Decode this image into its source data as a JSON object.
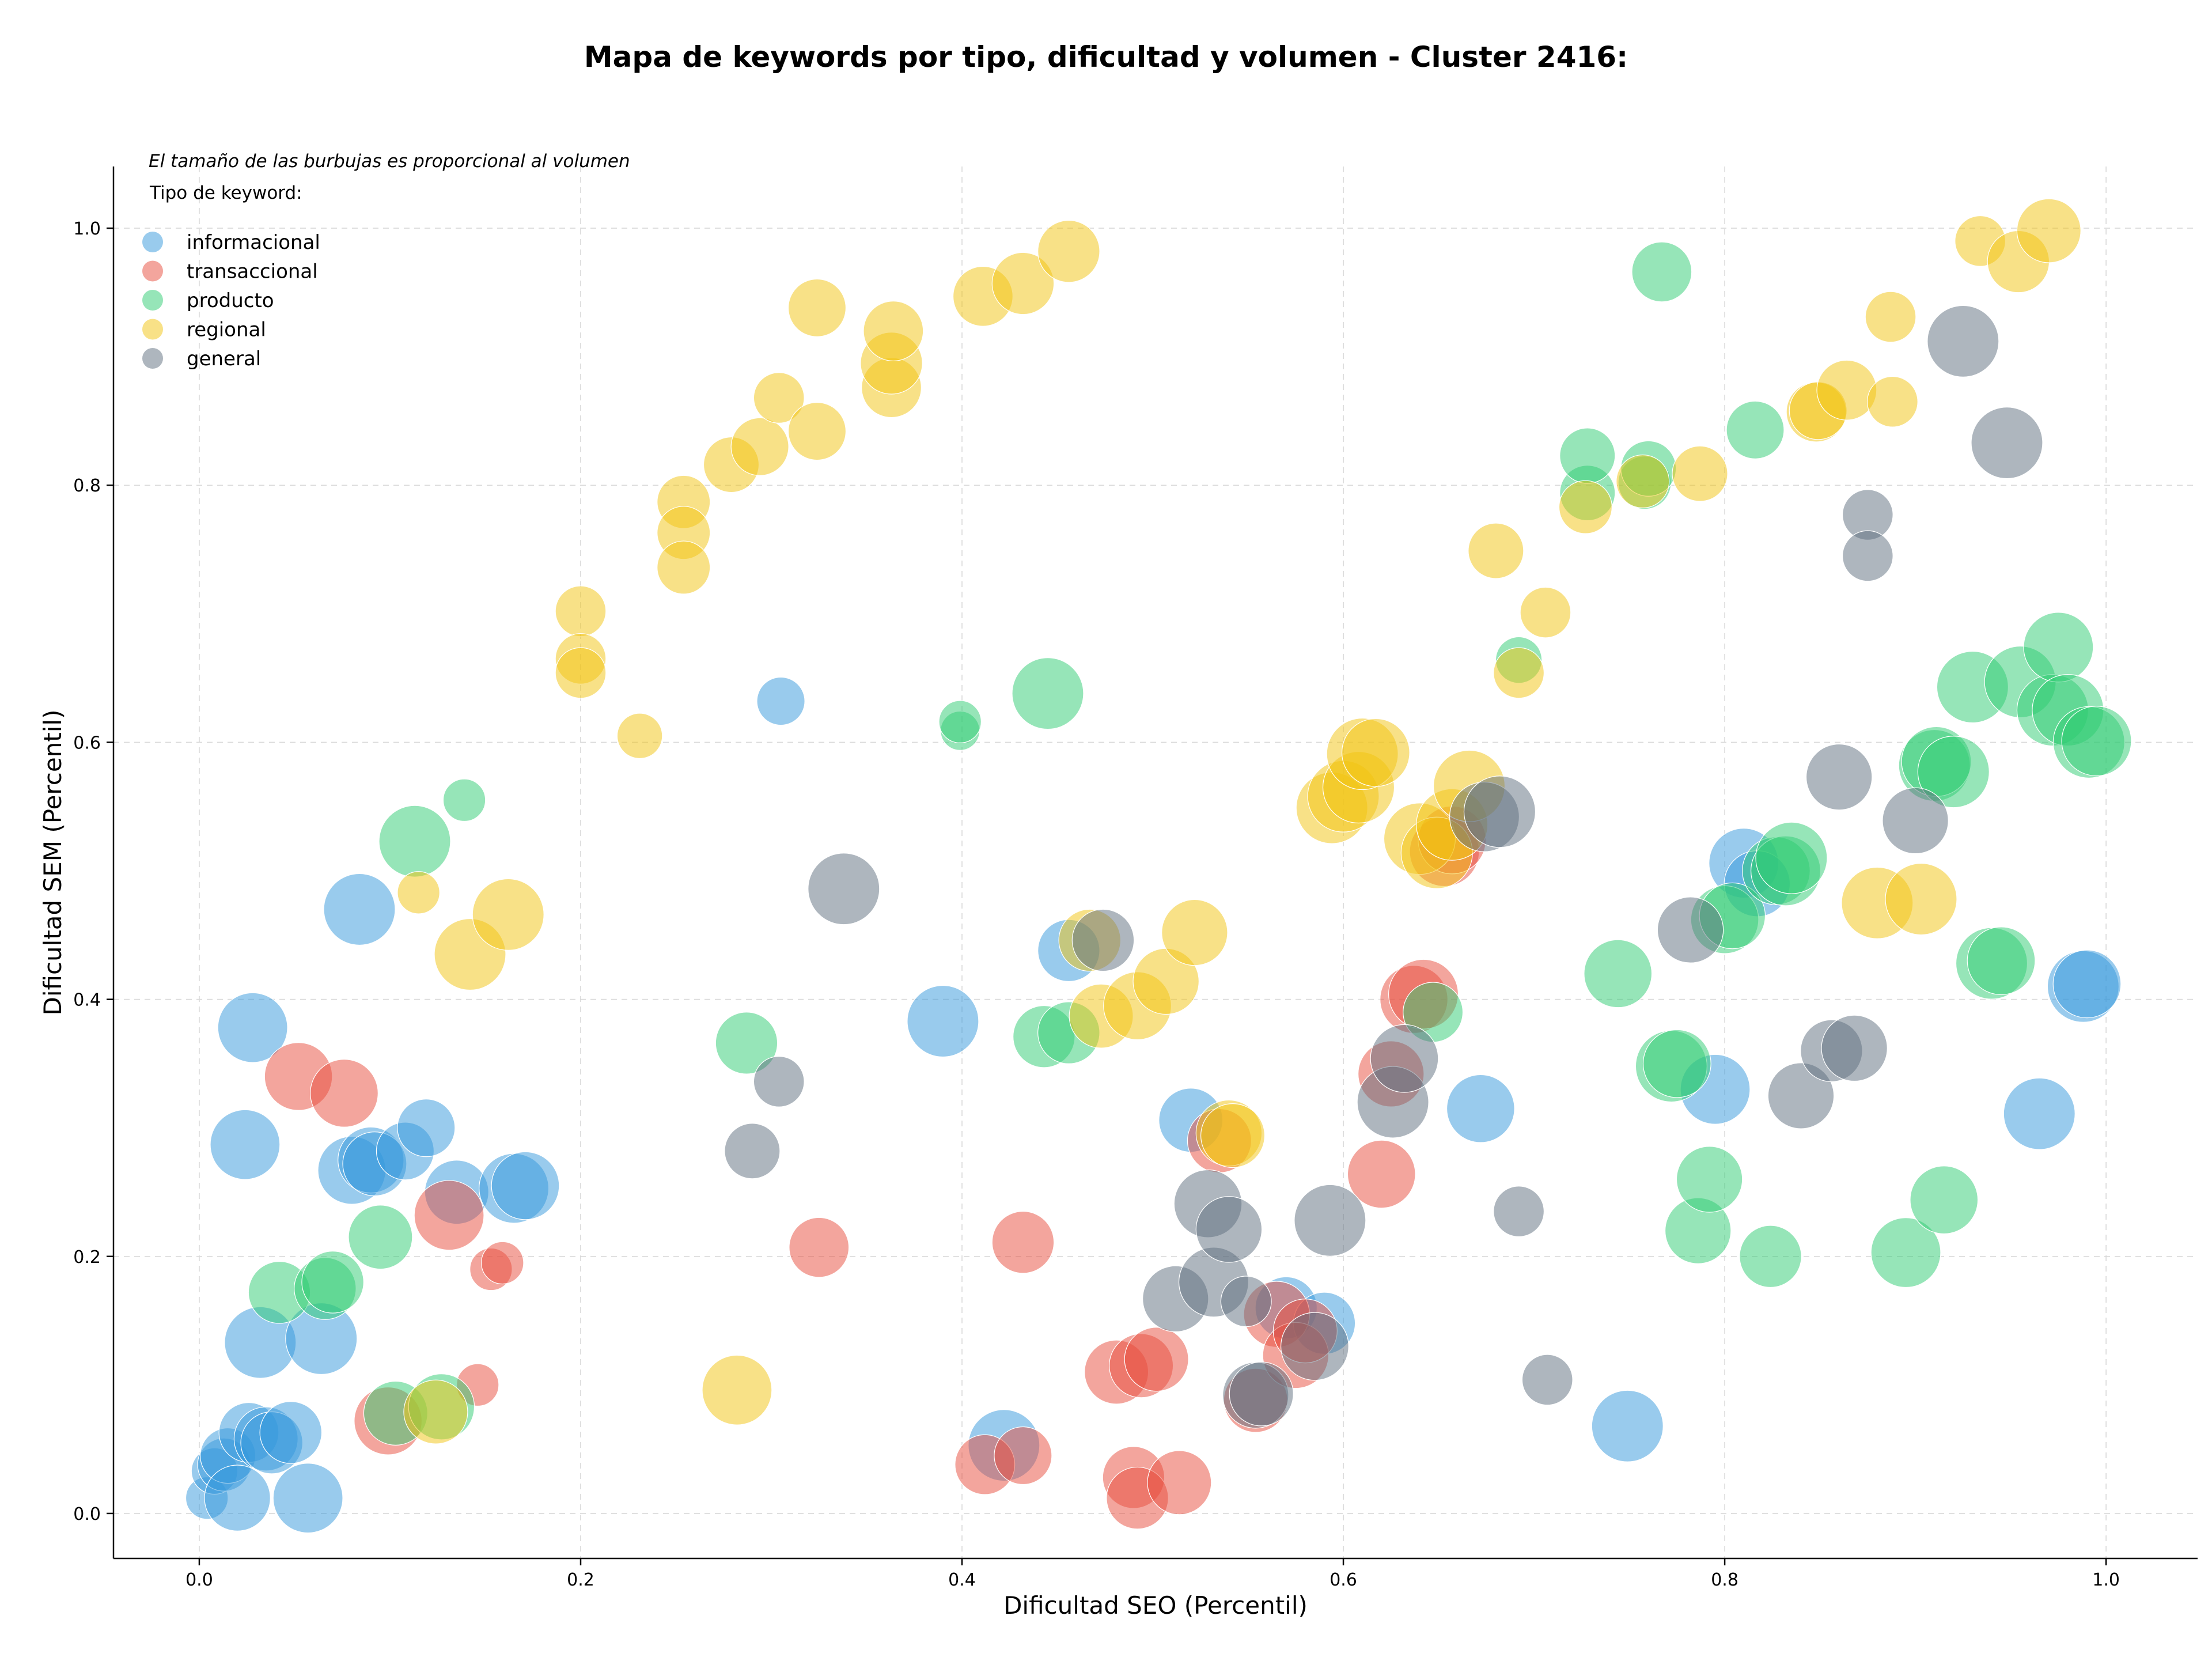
{
  "chart_data": {
    "type": "scatter",
    "title": "Mapa de keywords por tipo, dificultad y volumen - Cluster 2416:",
    "xlabel": "Dificultad SEO (Percentil)",
    "ylabel": "Dificultad SEM (Percentil)",
    "xlim": [
      -0.045,
      1.048
    ],
    "ylim": [
      -0.035,
      1.048
    ],
    "xticks": [
      "0.0",
      "0.2",
      "0.4",
      "0.6",
      "0.8",
      "1.0"
    ],
    "yticks": [
      "0.0",
      "0.2",
      "0.4",
      "0.6",
      "0.8",
      "1.0"
    ],
    "grid": true,
    "size_note": "El tamaño de las burbujas es proporcional al volumen",
    "legend_title": "Tipo de keyword:",
    "legend_position": "top-left",
    "series": [
      {
        "name": "informacional",
        "color": "#3498db",
        "points": [
          [
            0.004,
            0.012,
            0.35
          ],
          [
            0.008,
            0.033,
            0.42
          ],
          [
            0.013,
            0.038,
            0.55
          ],
          [
            0.015,
            0.045,
            0.6
          ],
          [
            0.02,
            0.012,
            0.85
          ],
          [
            0.026,
            0.063,
            0.7
          ],
          [
            0.035,
            0.058,
            0.8
          ],
          [
            0.038,
            0.055,
            0.75
          ],
          [
            0.048,
            0.063,
            0.75
          ],
          [
            0.057,
            0.012,
            0.95
          ],
          [
            0.032,
            0.133,
            1.0
          ],
          [
            0.064,
            0.136,
            1.0
          ],
          [
            0.024,
            0.287,
            0.95
          ],
          [
            0.028,
            0.378,
            0.95
          ],
          [
            0.084,
            0.47,
            1.0
          ],
          [
            0.08,
            0.267,
            0.9
          ],
          [
            0.09,
            0.275,
            0.85
          ],
          [
            0.092,
            0.272,
            0.8
          ],
          [
            0.108,
            0.282,
            0.65
          ],
          [
            0.119,
            0.3,
            0.65
          ],
          [
            0.135,
            0.25,
            0.8
          ],
          [
            0.165,
            0.253,
            0.95
          ],
          [
            0.171,
            0.255,
            0.9
          ],
          [
            0.305,
            0.632,
            0.45
          ],
          [
            0.39,
            0.383,
            1.0
          ],
          [
            0.422,
            0.053,
            1.0
          ],
          [
            0.456,
            0.438,
            0.75
          ],
          [
            0.52,
            0.306,
            0.8
          ],
          [
            0.57,
            0.16,
            0.75
          ],
          [
            0.59,
            0.148,
            0.75
          ],
          [
            0.672,
            0.315,
            0.9
          ],
          [
            0.749,
            0.068,
            1.0
          ],
          [
            0.795,
            0.33,
            0.95
          ],
          [
            0.81,
            0.506,
            0.95
          ],
          [
            0.817,
            0.49,
            0.85
          ],
          [
            0.965,
            0.311,
            1.0
          ],
          [
            0.988,
            0.41,
            1.0
          ],
          [
            0.99,
            0.412,
            0.9
          ]
        ]
      },
      {
        "name": "transaccional",
        "color": "#e74c3c",
        "points": [
          [
            0.052,
            0.34,
            0.9
          ],
          [
            0.076,
            0.327,
            0.9
          ],
          [
            0.099,
            0.072,
            0.9
          ],
          [
            0.131,
            0.232,
            0.95
          ],
          [
            0.146,
            0.1,
            0.35
          ],
          [
            0.153,
            0.19,
            0.35
          ],
          [
            0.159,
            0.195,
            0.35
          ],
          [
            0.325,
            0.207,
            0.7
          ],
          [
            0.412,
            0.038,
            0.7
          ],
          [
            0.432,
            0.045,
            0.65
          ],
          [
            0.432,
            0.211,
            0.75
          ],
          [
            0.481,
            0.11,
            0.8
          ],
          [
            0.49,
            0.028,
            0.75
          ],
          [
            0.492,
            0.012,
            0.75
          ],
          [
            0.494,
            0.115,
            0.8
          ],
          [
            0.502,
            0.12,
            0.8
          ],
          [
            0.514,
            0.024,
            0.8
          ],
          [
            0.535,
            0.29,
            0.8
          ],
          [
            0.554,
            0.088,
            0.8
          ],
          [
            0.565,
            0.155,
            0.85
          ],
          [
            0.575,
            0.123,
            0.85
          ],
          [
            0.58,
            0.142,
            0.8
          ],
          [
            0.62,
            0.264,
            0.9
          ],
          [
            0.625,
            0.342,
            0.85
          ],
          [
            0.637,
            0.4,
            0.9
          ],
          [
            0.642,
            0.404,
            0.95
          ],
          [
            0.653,
            0.515,
            0.95
          ],
          [
            0.657,
            0.524,
            0.9
          ]
        ]
      },
      {
        "name": "producto",
        "color": "#2ecc71",
        "points": [
          [
            0.042,
            0.172,
            0.75
          ],
          [
            0.066,
            0.175,
            0.75
          ],
          [
            0.07,
            0.18,
            0.75
          ],
          [
            0.095,
            0.215,
            0.8
          ],
          [
            0.103,
            0.078,
            0.8
          ],
          [
            0.113,
            0.523,
            1.0
          ],
          [
            0.127,
            0.083,
            0.85
          ],
          [
            0.139,
            0.555,
            0.35
          ],
          [
            0.287,
            0.366,
            0.75
          ],
          [
            0.399,
            0.609,
            0.3
          ],
          [
            0.399,
            0.616,
            0.35
          ],
          [
            0.445,
            0.638,
            1.0
          ],
          [
            0.443,
            0.371,
            0.75
          ],
          [
            0.456,
            0.374,
            0.75
          ],
          [
            0.647,
            0.39,
            0.7
          ],
          [
            0.692,
            0.664,
            0.42
          ],
          [
            0.728,
            0.794,
            0.6
          ],
          [
            0.728,
            0.823,
            0.6
          ],
          [
            0.744,
            0.42,
            0.9
          ],
          [
            0.758,
            0.802,
            0.55
          ],
          [
            0.76,
            0.813,
            0.6
          ],
          [
            0.767,
            0.966,
            0.7
          ],
          [
            0.772,
            0.348,
            1.0
          ],
          [
            0.775,
            0.35,
            0.9
          ],
          [
            0.786,
            0.22,
            0.85
          ],
          [
            0.792,
            0.26,
            0.85
          ],
          [
            0.8,
            0.462,
            0.9
          ],
          [
            0.804,
            0.465,
            0.85
          ],
          [
            0.816,
            0.843,
            0.65
          ],
          [
            0.824,
            0.2,
            0.75
          ],
          [
            0.827,
            0.5,
            0.9
          ],
          [
            0.832,
            0.5,
            0.95
          ],
          [
            0.835,
            0.51,
            1.0
          ],
          [
            0.895,
            0.203,
            0.95
          ],
          [
            0.91,
            0.582,
            1.0
          ],
          [
            0.911,
            0.585,
            0.95
          ],
          [
            0.915,
            0.244,
            0.9
          ],
          [
            0.92,
            0.577,
            1.0
          ],
          [
            0.93,
            0.643,
            1.0
          ],
          [
            0.94,
            0.428,
            1.0
          ],
          [
            0.945,
            0.43,
            0.9
          ],
          [
            0.955,
            0.647,
            1.0
          ],
          [
            0.972,
            0.625,
            1.0
          ],
          [
            0.975,
            0.674,
            0.95
          ],
          [
            0.98,
            0.625,
            1.0
          ],
          [
            0.991,
            0.6,
            1.0
          ],
          [
            0.995,
            0.601,
            0.95
          ]
        ]
      },
      {
        "name": "regional",
        "color": "#f1c40f",
        "points": [
          [
            0.115,
            0.483,
            0.35
          ],
          [
            0.142,
            0.435,
            1.0
          ],
          [
            0.162,
            0.466,
            1.0
          ],
          [
            0.124,
            0.079,
            0.8
          ],
          [
            0.2,
            0.702,
            0.5
          ],
          [
            0.2,
            0.665,
            0.5
          ],
          [
            0.2,
            0.654,
            0.5
          ],
          [
            0.231,
            0.605,
            0.4
          ],
          [
            0.254,
            0.787,
            0.55
          ],
          [
            0.254,
            0.763,
            0.55
          ],
          [
            0.254,
            0.736,
            0.55
          ],
          [
            0.279,
            0.816,
            0.6
          ],
          [
            0.294,
            0.83,
            0.65
          ],
          [
            0.304,
            0.868,
            0.5
          ],
          [
            0.324,
            0.842,
            0.65
          ],
          [
            0.324,
            0.938,
            0.65
          ],
          [
            0.363,
            0.876,
            0.7
          ],
          [
            0.363,
            0.895,
            0.75
          ],
          [
            0.364,
            0.92,
            0.7
          ],
          [
            0.411,
            0.947,
            0.7
          ],
          [
            0.432,
            0.957,
            0.75
          ],
          [
            0.456,
            0.982,
            0.75
          ],
          [
            0.282,
            0.096,
            0.95
          ],
          [
            0.473,
            0.387,
            0.8
          ],
          [
            0.467,
            0.446,
            0.75
          ],
          [
            0.492,
            0.395,
            0.9
          ],
          [
            0.507,
            0.414,
            0.85
          ],
          [
            0.522,
            0.452,
            0.85
          ],
          [
            0.54,
            0.296,
            0.85
          ],
          [
            0.542,
            0.294,
            0.8
          ],
          [
            0.594,
            0.549,
            1.0
          ],
          [
            0.6,
            0.558,
            1.0
          ],
          [
            0.608,
            0.565,
            1.0
          ],
          [
            0.61,
            0.591,
            1.0
          ],
          [
            0.617,
            0.592,
            0.9
          ],
          [
            0.64,
            0.525,
            1.0
          ],
          [
            0.649,
            0.514,
            1.0
          ],
          [
            0.657,
            0.536,
            1.0
          ],
          [
            0.666,
            0.566,
            1.0
          ],
          [
            0.68,
            0.749,
            0.6
          ],
          [
            0.692,
            0.654,
            0.5
          ],
          [
            0.706,
            0.701,
            0.5
          ],
          [
            0.727,
            0.783,
            0.55
          ],
          [
            0.757,
            0.803,
            0.55
          ],
          [
            0.787,
            0.809,
            0.6
          ],
          [
            0.848,
            0.857,
            0.7
          ],
          [
            0.849,
            0.858,
            0.65
          ],
          [
            0.864,
            0.874,
            0.7
          ],
          [
            0.88,
            0.475,
            1.0
          ],
          [
            0.887,
            0.931,
            0.5
          ],
          [
            0.888,
            0.865,
            0.5
          ],
          [
            0.903,
            0.478,
            1.0
          ],
          [
            0.934,
            0.99,
            0.5
          ],
          [
            0.954,
            0.974,
            0.75
          ],
          [
            0.97,
            0.998,
            0.8
          ]
        ]
      },
      {
        "name": "general",
        "color": "#5d6d7e",
        "points": [
          [
            0.29,
            0.282,
            0.6
          ],
          [
            0.304,
            0.336,
            0.5
          ],
          [
            0.338,
            0.486,
            1.0
          ],
          [
            0.474,
            0.446,
            0.75
          ],
          [
            0.512,
            0.167,
            0.85
          ],
          [
            0.529,
            0.241,
            0.9
          ],
          [
            0.532,
            0.18,
            0.95
          ],
          [
            0.54,
            0.221,
            0.85
          ],
          [
            0.549,
            0.165,
            0.5
          ],
          [
            0.554,
            0.092,
            0.85
          ],
          [
            0.557,
            0.093,
            0.8
          ],
          [
            0.585,
            0.13,
            0.9
          ],
          [
            0.593,
            0.228,
            1.0
          ],
          [
            0.626,
            0.32,
            1.0
          ],
          [
            0.632,
            0.354,
            0.9
          ],
          [
            0.674,
            0.542,
            0.95
          ],
          [
            0.682,
            0.546,
            1.0
          ],
          [
            0.692,
            0.235,
            0.5
          ],
          [
            0.707,
            0.104,
            0.5
          ],
          [
            0.782,
            0.454,
            0.85
          ],
          [
            0.84,
            0.325,
            0.85
          ],
          [
            0.86,
            0.573,
            0.85
          ],
          [
            0.856,
            0.36,
            0.75
          ],
          [
            0.868,
            0.362,
            0.85
          ],
          [
            0.875,
            0.777,
            0.5
          ],
          [
            0.875,
            0.745,
            0.5
          ],
          [
            0.9,
            0.539,
            0.85
          ],
          [
            0.925,
            0.912,
            1.0
          ],
          [
            0.948,
            0.833,
            1.0
          ]
        ]
      }
    ]
  }
}
